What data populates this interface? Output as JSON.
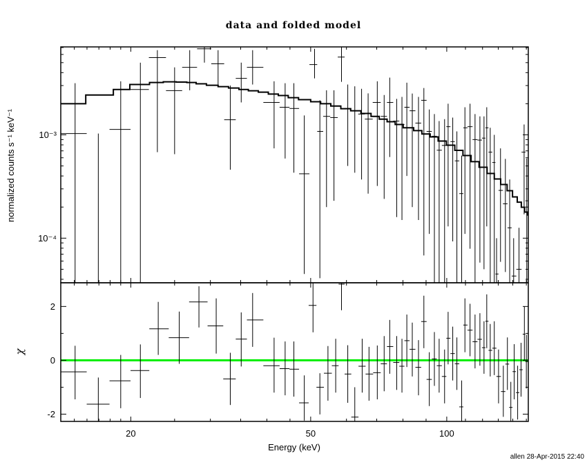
{
  "title": "data and folded model",
  "axis_labels": {
    "x": "Energy (keV)",
    "y_top": "normalized counts s⁻¹ keV⁻¹",
    "y_bottom": "χ"
  },
  "signature": "allen 28-Apr-2015 22:40",
  "colors": {
    "foreground": "#000000",
    "background": "#ffffff",
    "data": "#000000",
    "model": "#000000",
    "zero_line": "#00ee00"
  },
  "chart_data": [
    {
      "type": "scatter",
      "name": "spectrum",
      "title": "data and folded model",
      "ylabel": "normalized counts s⁻¹ keV⁻¹",
      "xscale": "log",
      "yscale": "log",
      "xlim": [
        14.0,
        151.5
      ],
      "ylim": [
        3.7e-05,
        0.0071
      ],
      "xticks_labeled": [
        {
          "v": 20,
          "label": "20"
        },
        {
          "v": 50,
          "label": "50"
        },
        {
          "v": 100,
          "label": "100"
        }
      ],
      "xticks_minor": [
        15,
        16,
        17,
        18,
        19,
        25,
        30,
        35,
        40,
        45,
        60,
        70,
        80,
        90,
        110,
        120,
        130,
        140,
        150
      ],
      "yticks_labeled": [
        {
          "v": 0.001,
          "label": "10⁻³"
        },
        {
          "v": 0.0001,
          "label": "10⁻⁴"
        }
      ],
      "points_format": [
        "energy_keV",
        "value",
        "err_low",
        "err_high"
      ],
      "points": [
        [
          15.06,
          0.00103,
          1e-05,
          0.00316
        ],
        [
          16.95,
          2e-05,
          1e-05,
          0.00103
        ],
        [
          19.0,
          0.00113,
          1e-05,
          0.0033
        ],
        [
          21.0,
          0.00275,
          1e-05,
          0.005
        ],
        [
          22.9,
          0.0056,
          0.00068,
          0.0066
        ],
        [
          25.0,
          0.00268,
          0.00065,
          0.0045
        ],
        [
          27.0,
          0.0045,
          0.0027,
          0.0066
        ],
        [
          29.1,
          0.0068,
          0.005,
          0.008
        ],
        [
          31.2,
          0.00487,
          0.00307,
          0.0066
        ],
        [
          33.2,
          0.0014,
          0.00046,
          0.003
        ],
        [
          35.1,
          0.00352,
          0.00206,
          0.005
        ],
        [
          37.2,
          0.0045,
          0.00307,
          0.0066
        ],
        [
          41.5,
          0.00206,
          0.00074,
          0.0033
        ],
        [
          43.9,
          0.00185,
          0.00059,
          0.00316
        ],
        [
          45.9,
          0.0018,
          0.00043,
          0.00316
        ],
        [
          48.4,
          0.00042,
          4.5e-05,
          0.00154
        ],
        [
          51.0,
          0.00479,
          0.00352,
          0.0068
        ],
        [
          52.4,
          0.00108,
          4.1e-05,
          0.00216
        ],
        [
          54.2,
          0.00151,
          0.0002,
          0.0027
        ],
        [
          56.3,
          0.00147,
          0.00023,
          0.0027
        ],
        [
          58.5,
          0.00566,
          0.00326,
          0.008
        ],
        [
          60.4,
          0.0018,
          0.0005,
          0.00307
        ],
        [
          62.6,
          0.00171,
          0.00043,
          0.00295
        ],
        [
          64.8,
          0.00159,
          0.00037,
          0.00279
        ],
        [
          67.0,
          0.00142,
          0.00027,
          0.00252
        ],
        [
          70.2,
          0.00206,
          0.00032,
          0.0033
        ],
        [
          72.7,
          0.00151,
          0.00024,
          0.00243
        ],
        [
          74.8,
          0.00206,
          0.00061,
          0.00358
        ],
        [
          77.5,
          0.00136,
          0.00016,
          0.00223
        ],
        [
          79.6,
          0.00126,
          0.00015,
          0.00233
        ],
        [
          81.6,
          0.00185,
          0.0004,
          0.0032
        ],
        [
          83.9,
          0.00171,
          0.0002,
          0.00251
        ],
        [
          86.6,
          0.0013,
          0.00015,
          0.00233
        ],
        [
          89.0,
          0.00216,
          6.8e-05,
          0.00284
        ],
        [
          91.5,
          0.00108,
          0.00011,
          0.00176
        ],
        [
          93.9,
          0.00097,
          1e-05,
          0.00159
        ],
        [
          96.2,
          0.00071,
          1e-05,
          0.00136
        ],
        [
          98.9,
          0.00079,
          1e-05,
          0.00142
        ],
        [
          100.7,
          0.0012,
          0.00013,
          0.002
        ],
        [
          103.1,
          0.00086,
          9.3e-05,
          0.00147
        ],
        [
          105.3,
          0.00056,
          1e-05,
          0.00108
        ],
        [
          107.9,
          0.00027,
          1e-05,
          0.00063
        ],
        [
          109.7,
          0.00117,
          0.00011,
          0.00185
        ],
        [
          112.6,
          0.0012,
          7.9e-05,
          0.002
        ],
        [
          115.5,
          0.0009,
          1e-05,
          0.00159
        ],
        [
          118.4,
          0.00089,
          5.8e-05,
          0.00151
        ],
        [
          120.9,
          0.00093,
          5e-05,
          0.00151
        ],
        [
          122.6,
          0.00117,
          0.00013,
          0.00185
        ],
        [
          124.8,
          0.00068,
          1e-05,
          0.00117
        ],
        [
          127.4,
          0.00054,
          1e-05,
          0.001
        ],
        [
          128.9,
          4.5e-05,
          1e-05,
          0.0001
        ],
        [
          131.5,
          0.00029,
          5.9e-05,
          0.00074
        ],
        [
          134.8,
          0.000215,
          4.7e-05,
          0.000585
        ],
        [
          137.8,
          0.000126,
          1e-05,
          0.00037
        ],
        [
          140.6,
          4.3e-05,
          1e-05,
          0.0001
        ],
        [
          144.5,
          5e-05,
          1e-05,
          0.000126
        ],
        [
          148.3,
          0.00068,
          0.00017,
          0.00126
        ],
        [
          150.3,
          0.00023,
          1e-05,
          0.00059
        ]
      ],
      "model_step": {
        "edges_keV": [
          14.0,
          15.9,
          18.3,
          19.9,
          22.0,
          23.6,
          25.2,
          26.6,
          27.9,
          29.4,
          31.2,
          32.9,
          34.7,
          36.4,
          38.3,
          40.3,
          42.4,
          44.6,
          47.0,
          50.0,
          52.6,
          55.4,
          58.3,
          61.3,
          64.6,
          68.0,
          70.9,
          73.8,
          76.9,
          80.1,
          84.5,
          88.1,
          91.9,
          95.7,
          99.8,
          104.2,
          108.6,
          113.2,
          117.9,
          122.8,
          127.4,
          131.6,
          136.0,
          139.8,
          143.2,
          146.2,
          148.7,
          150.8,
          151.5
        ],
        "values": [
          0.002,
          0.00243,
          0.00275,
          0.00307,
          0.00321,
          0.00326,
          0.00324,
          0.00321,
          0.00312,
          0.00302,
          0.00293,
          0.00284,
          0.00275,
          0.00267,
          0.00259,
          0.00248,
          0.0024,
          0.00229,
          0.00219,
          0.00209,
          0.002,
          0.0019,
          0.00179,
          0.00171,
          0.00161,
          0.00151,
          0.00142,
          0.00134,
          0.00126,
          0.00117,
          0.0011,
          0.00102,
          0.000955,
          0.000871,
          0.000794,
          0.000708,
          0.000631,
          0.00055,
          0.000486,
          0.000423,
          0.000374,
          0.000331,
          0.000288,
          0.000251,
          0.000223,
          0.000199,
          0.000179,
          0.000168
        ]
      }
    },
    {
      "type": "scatter",
      "name": "residuals",
      "ylabel": "χ",
      "xlabel": "Energy (keV)",
      "xscale": "log",
      "yscale": "linear",
      "xlim": [
        14.0,
        151.5
      ],
      "ylim": [
        -2.27,
        2.88
      ],
      "yticks_labeled": [
        {
          "v": 2,
          "label": "2"
        },
        {
          "v": 0,
          "label": "0"
        },
        {
          "v": -2,
          "label": "-2"
        }
      ],
      "yticks_minor": [
        -1,
        1
      ],
      "zero_line": {
        "y": 0,
        "color": "#00ee00"
      },
      "points_format": [
        "energy_keV",
        "chi",
        "err_low",
        "err_high"
      ],
      "points": [
        [
          15.06,
          -0.43,
          -1.45,
          0.54
        ],
        [
          16.95,
          -1.63,
          -4,
          -0.64
        ],
        [
          19.0,
          -0.76,
          -1.78,
          0.2
        ],
        [
          21.0,
          -0.38,
          -1.4,
          0.59
        ],
        [
          23.0,
          1.17,
          0.2,
          2.17
        ],
        [
          25.6,
          0.84,
          -0.13,
          1.81
        ],
        [
          28.3,
          2.17,
          1.22,
          2.75
        ],
        [
          30.9,
          1.28,
          0.25,
          2.3
        ],
        [
          33.2,
          -0.69,
          -1.66,
          0.28
        ],
        [
          35.1,
          0.79,
          -0.23,
          1.78
        ],
        [
          37.2,
          1.5,
          0.5,
          2.5
        ],
        [
          41.5,
          -0.2,
          -1.2,
          0.84
        ],
        [
          43.9,
          -0.31,
          -1.3,
          0.7
        ],
        [
          45.9,
          -0.33,
          -1.35,
          0.7
        ],
        [
          48.4,
          -1.58,
          -2.24,
          -0.56
        ],
        [
          50.6,
          2.04,
          1.04,
          4
        ],
        [
          52.4,
          -1.0,
          -2.01,
          -0.48
        ],
        [
          54.6,
          -0.48,
          -1.5,
          0.53
        ],
        [
          56.8,
          -0.2,
          -1.2,
          0.8
        ],
        [
          58.5,
          2.83,
          1.86,
          4
        ],
        [
          60.4,
          -0.51,
          -1.58,
          0.56
        ],
        [
          62.6,
          -2.11,
          -4,
          -1.0
        ],
        [
          65.0,
          -0.22,
          -1.2,
          0.8
        ],
        [
          67.3,
          -0.51,
          -1.5,
          0.5
        ],
        [
          70.2,
          -0.46,
          -1.45,
          0.55
        ],
        [
          72.7,
          -0.13,
          -1.15,
          0.9
        ],
        [
          74.8,
          0.51,
          -0.5,
          1.5
        ],
        [
          77.5,
          -0.08,
          -1.1,
          0.9
        ],
        [
          79.6,
          -0.22,
          -1.2,
          0.8
        ],
        [
          81.6,
          0.73,
          -0.25,
          1.7
        ],
        [
          83.9,
          0.41,
          -0.6,
          1.4
        ],
        [
          86.6,
          -0.26,
          -1.3,
          0.75
        ],
        [
          89.0,
          1.44,
          0.45,
          2.4
        ],
        [
          91.5,
          -0.71,
          -1.7,
          0.3
        ],
        [
          93.9,
          0.05,
          -0.95,
          1.05
        ],
        [
          96.2,
          -0.2,
          -1.2,
          0.8
        ],
        [
          98.9,
          -0.6,
          -1.6,
          0.4
        ],
        [
          100.7,
          0.82,
          -0.15,
          1.8
        ],
        [
          103.1,
          0.25,
          -0.75,
          1.25
        ],
        [
          105.3,
          -0.13,
          -1.1,
          0.85
        ],
        [
          107.9,
          -1.73,
          -2.45,
          -0.75
        ],
        [
          109.7,
          1.31,
          0.3,
          2.3
        ],
        [
          112.6,
          1.12,
          0.15,
          2.1
        ],
        [
          115.5,
          0.69,
          -0.3,
          1.7
        ],
        [
          118.4,
          0.78,
          -0.2,
          1.75
        ],
        [
          120.9,
          0.47,
          -0.5,
          1.45
        ],
        [
          122.6,
          1.45,
          0.45,
          2.45
        ],
        [
          124.8,
          0.37,
          -0.6,
          1.35
        ],
        [
          127.4,
          0.45,
          -0.55,
          1.45
        ],
        [
          130.2,
          -0.6,
          -1.6,
          0.4
        ],
        [
          133.4,
          -1.16,
          -2.1,
          -0.2
        ],
        [
          136.2,
          -0.14,
          -1.1,
          0.85
        ],
        [
          138.6,
          -1.75,
          -2.45,
          -0.8
        ],
        [
          141.0,
          -0.42,
          -1.45,
          0.6
        ],
        [
          143.5,
          -1.2,
          -2.2,
          -0.2
        ],
        [
          146.0,
          -0.35,
          -1.35,
          0.65
        ],
        [
          148.5,
          0.97,
          0.0,
          2.0
        ],
        [
          150.0,
          -0.05,
          -1.05,
          0.95
        ]
      ]
    }
  ]
}
